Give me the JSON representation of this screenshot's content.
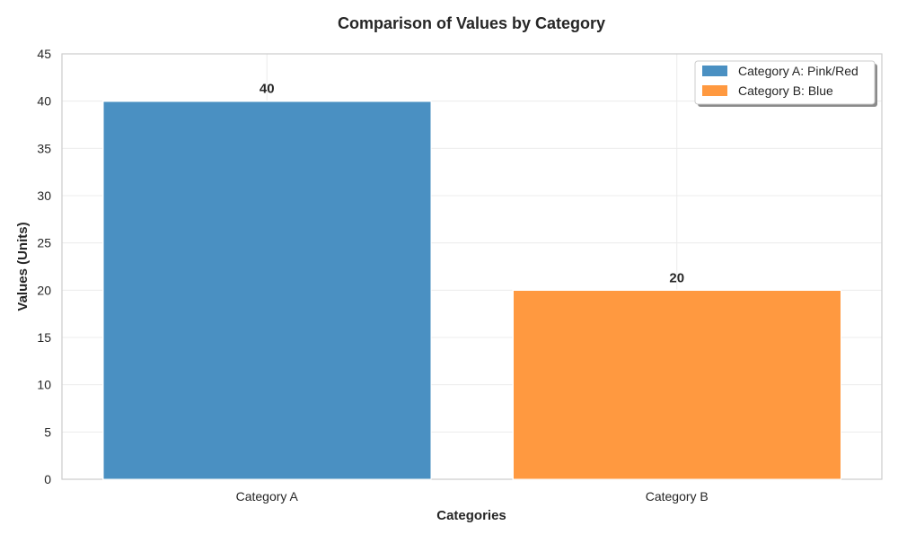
{
  "chart_data": {
    "type": "bar",
    "title": "Comparison of Values by Category",
    "xlabel": "Categories",
    "ylabel": "Values (Units)",
    "categories": [
      "Category A",
      "Category B"
    ],
    "values": [
      40,
      20
    ],
    "colors": [
      "#4a90c2",
      "#ff9940"
    ],
    "data_labels": [
      "40",
      "20"
    ],
    "ylim": [
      0,
      45
    ],
    "yticks": [
      0,
      5,
      10,
      15,
      20,
      25,
      30,
      35,
      40,
      45
    ],
    "ytick_labels": [
      "0",
      "5",
      "10",
      "15",
      "20",
      "25",
      "30",
      "35",
      "40",
      "45"
    ],
    "grid": true,
    "legend": {
      "placement": "top-right",
      "entries": [
        {
          "label": "Category A: Pink/Red",
          "color": "#4a90c2"
        },
        {
          "label": "Category B: Blue",
          "color": "#ff9940"
        }
      ]
    }
  }
}
